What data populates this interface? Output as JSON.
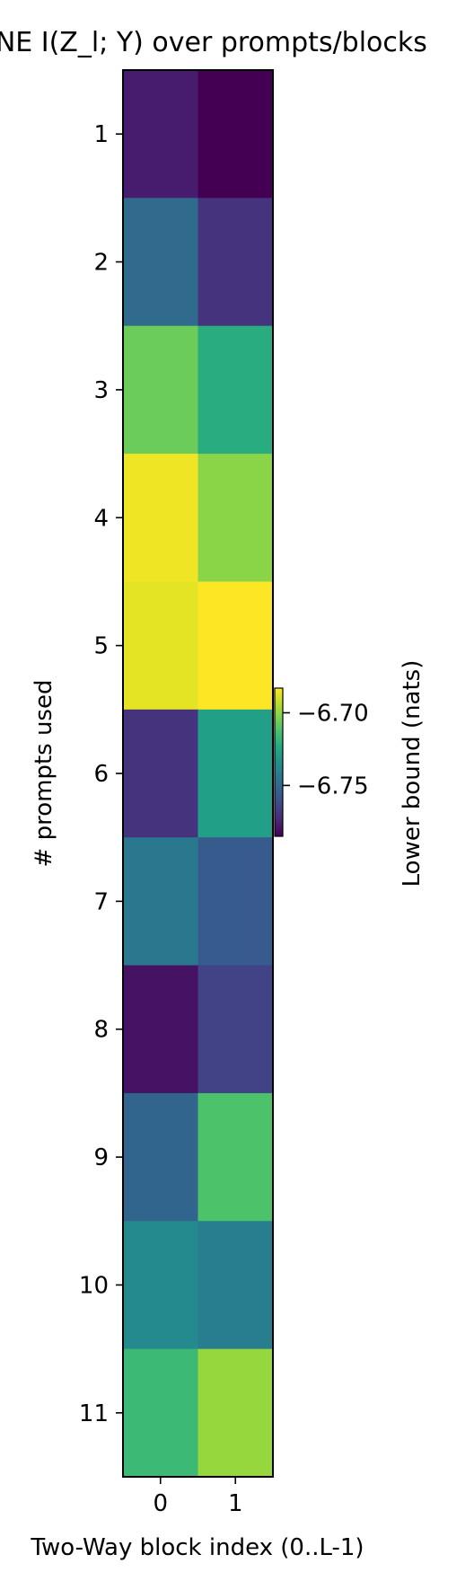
{
  "chart_data": {
    "type": "heatmap",
    "title": "MINE  I(Z_l; Y) over prompts/blocks",
    "xlabel": "Two-Way block index (0..L-1)",
    "ylabel": "# prompts used",
    "x_categories": [
      "0",
      "1"
    ],
    "y_categories": [
      "1",
      "2",
      "3",
      "4",
      "5",
      "6",
      "7",
      "8",
      "9",
      "10",
      "11"
    ],
    "values": [
      [
        -6.777,
        -6.785
      ],
      [
        -6.75,
        -6.77
      ],
      [
        -6.706,
        -6.722
      ],
      [
        -6.685,
        -6.701
      ],
      [
        -6.687,
        -6.683
      ],
      [
        -6.77,
        -6.728
      ],
      [
        -6.744,
        -6.756
      ],
      [
        -6.78,
        -6.765
      ],
      [
        -6.752,
        -6.712
      ],
      [
        -6.737,
        -6.742
      ],
      [
        -6.716,
        -6.699
      ]
    ],
    "colormap": "viridis",
    "colorbar": {
      "label": "Lower bound (nats)",
      "range": [
        -6.785,
        -6.683
      ],
      "ticks": [
        -6.75,
        -6.7
      ],
      "tick_labels": [
        "−6.75",
        "−6.70"
      ]
    }
  }
}
